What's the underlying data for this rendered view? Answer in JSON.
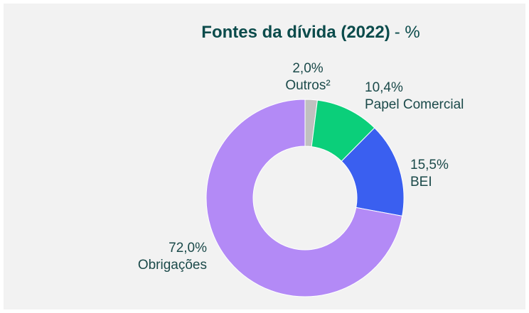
{
  "chart_data": {
    "type": "pie",
    "title": "Fontes da dívida (2022)",
    "title_suffix": "- %",
    "categories": [
      "Outros²",
      "Papel Comercial",
      "BEI",
      "Obrigações"
    ],
    "values": [
      2.0,
      10.4,
      15.5,
      72.0
    ],
    "value_labels": [
      "2,0%",
      "10,4%",
      "15,5%",
      "72,0%"
    ],
    "colors": [
      "#c0c0c0",
      "#0bcf7a",
      "#3a5ff0",
      "#b38af6"
    ],
    "donut": true
  }
}
